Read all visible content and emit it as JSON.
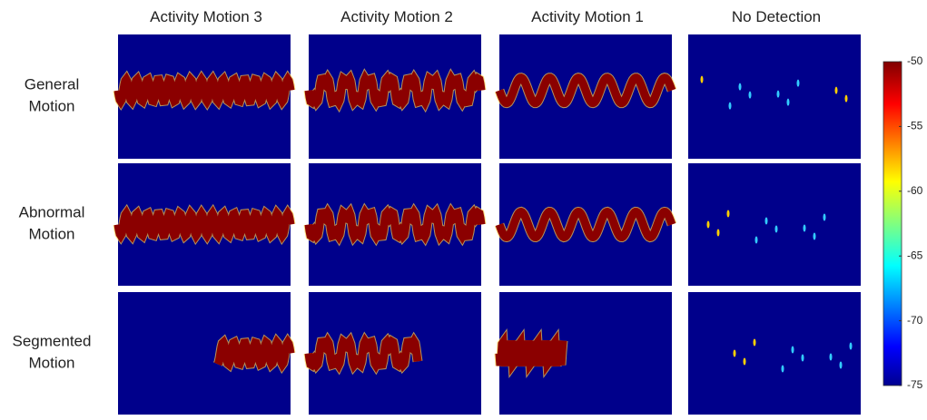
{
  "columns": [
    "Activity Motion 3",
    "Activity Motion 2",
    "Activity Motion 1",
    "No Detection"
  ],
  "rows": [
    [
      "General",
      "Motion"
    ],
    [
      "Abnormal",
      "Motion"
    ],
    [
      "Segmented",
      "Motion"
    ]
  ],
  "colorbar": {
    "lim": [
      -75,
      -50
    ],
    "ticks": [
      -50,
      -55,
      -60,
      -65,
      -70,
      -75
    ]
  }
}
